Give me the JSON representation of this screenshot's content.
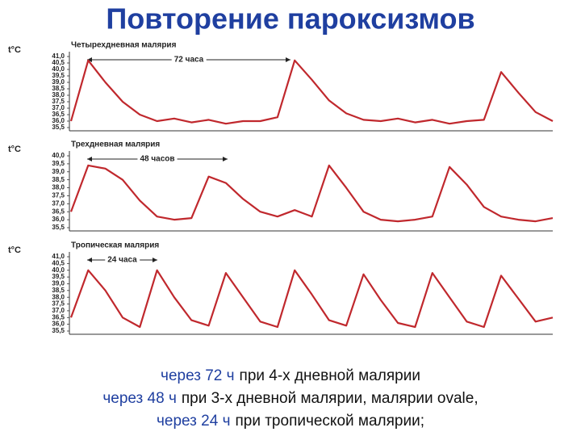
{
  "title": "Повторение пароксизмов",
  "chart_data": [
    {
      "type": "line",
      "title": "Четырехдневная малярия",
      "y_label": "t°C",
      "annotation": "72 часа",
      "color": "#c0282d",
      "grid": false,
      "x": [
        0,
        6,
        12,
        18,
        24,
        30,
        36,
        42,
        48,
        54,
        60,
        66,
        72,
        78,
        84,
        90,
        96,
        102,
        108,
        114,
        120,
        126,
        132,
        138,
        144,
        150,
        156,
        162,
        168
      ],
      "values": [
        36.0,
        40.7,
        39.0,
        37.5,
        36.5,
        36.0,
        36.2,
        35.9,
        36.1,
        35.8,
        36.0,
        36.0,
        36.3,
        40.7,
        39.2,
        37.6,
        36.6,
        36.1,
        36.0,
        36.2,
        35.9,
        36.1,
        35.8,
        36.0,
        36.1,
        39.8,
        38.2,
        36.7,
        36.0
      ],
      "xlim": [
        0,
        168
      ],
      "ylim": [
        35.5,
        41.0
      ],
      "yticks": [
        {
          "value": 41.0,
          "label": "41,0"
        },
        {
          "value": 40.5,
          "label": "40,5"
        },
        {
          "value": 40.0,
          "label": "40,0"
        },
        {
          "value": 39.5,
          "label": "39,5"
        },
        {
          "value": 39.0,
          "label": "39,0"
        },
        {
          "value": 38.5,
          "label": "38,5"
        },
        {
          "value": 38.0,
          "label": "38,0"
        },
        {
          "value": 37.5,
          "label": "37,5"
        },
        {
          "value": 37.0,
          "label": "37,0"
        },
        {
          "value": 36.5,
          "label": "36,5"
        },
        {
          "value": 36.0,
          "label": "36,0"
        },
        {
          "value": 35.5,
          "label": "35,5"
        }
      ]
    },
    {
      "type": "line",
      "title": "Трехдневная малярия",
      "y_label": "t°C",
      "annotation": "48 часов",
      "color": "#c0282d",
      "grid": false,
      "x": [
        0,
        6,
        12,
        18,
        24,
        30,
        36,
        42,
        48,
        54,
        60,
        66,
        72,
        78,
        84,
        90,
        96,
        102,
        108,
        114,
        120,
        126,
        132,
        138,
        144,
        150,
        156,
        162,
        168
      ],
      "values": [
        36.5,
        39.4,
        39.2,
        38.5,
        37.2,
        36.2,
        36.0,
        36.1,
        38.7,
        38.3,
        37.3,
        36.5,
        36.2,
        36.6,
        36.2,
        39.4,
        38.0,
        36.5,
        36.0,
        35.9,
        36.0,
        36.2,
        39.3,
        38.2,
        36.8,
        36.2,
        36.0,
        35.9,
        36.1
      ],
      "xlim": [
        0,
        168
      ],
      "ylim": [
        35.5,
        40.0
      ],
      "yticks": [
        {
          "value": 40.0,
          "label": "40,0"
        },
        {
          "value": 39.5,
          "label": "39,5"
        },
        {
          "value": 39.0,
          "label": "39,0"
        },
        {
          "value": 38.5,
          "label": "38,5"
        },
        {
          "value": 38.0,
          "label": "38,0"
        },
        {
          "value": 37.5,
          "label": "37,5"
        },
        {
          "value": 37.0,
          "label": "37,0"
        },
        {
          "value": 36.5,
          "label": "36,5"
        },
        {
          "value": 36.0,
          "label": "36,0"
        },
        {
          "value": 35.5,
          "label": "35,5"
        }
      ]
    },
    {
      "type": "line",
      "title": "Тропическая малярия",
      "y_label": "t°C",
      "annotation": "24 часа",
      "color": "#c0282d",
      "grid": false,
      "x": [
        0,
        6,
        12,
        18,
        24,
        30,
        36,
        42,
        48,
        54,
        60,
        66,
        72,
        78,
        84,
        90,
        96,
        102,
        108,
        114,
        120,
        126,
        132,
        138,
        144,
        150,
        156,
        162,
        168
      ],
      "values": [
        36.5,
        40.0,
        38.5,
        36.5,
        35.8,
        40.0,
        38.0,
        36.3,
        35.9,
        39.8,
        38.0,
        36.2,
        35.8,
        40.0,
        38.2,
        36.3,
        35.9,
        39.7,
        37.8,
        36.1,
        35.8,
        39.8,
        38.0,
        36.2,
        35.8,
        39.6,
        37.9,
        36.2,
        36.5
      ],
      "xlim": [
        0,
        168
      ],
      "ylim": [
        35.5,
        41.0
      ],
      "yticks": [
        {
          "value": 41.0,
          "label": "41,0"
        },
        {
          "value": 40.5,
          "label": "40,5"
        },
        {
          "value": 40.0,
          "label": "40,0"
        },
        {
          "value": 39.5,
          "label": "39,5"
        },
        {
          "value": 39.0,
          "label": "39,0"
        },
        {
          "value": 38.5,
          "label": "38,5"
        },
        {
          "value": 38.0,
          "label": "38,0"
        },
        {
          "value": 37.5,
          "label": "37,5"
        },
        {
          "value": 37.0,
          "label": "37,0"
        },
        {
          "value": 36.5,
          "label": "36,5"
        },
        {
          "value": 36.0,
          "label": "36,0"
        },
        {
          "value": 35.5,
          "label": "35,5"
        }
      ]
    }
  ],
  "caption": [
    {
      "highlight": "через 72 ч",
      "text": "при 4-х дневной малярии"
    },
    {
      "highlight": "через 48 ч",
      "text": "при 3-х дневной малярии, малярии ovale,"
    },
    {
      "highlight": "через 24 ч",
      "text": "при тропической малярии;"
    }
  ]
}
